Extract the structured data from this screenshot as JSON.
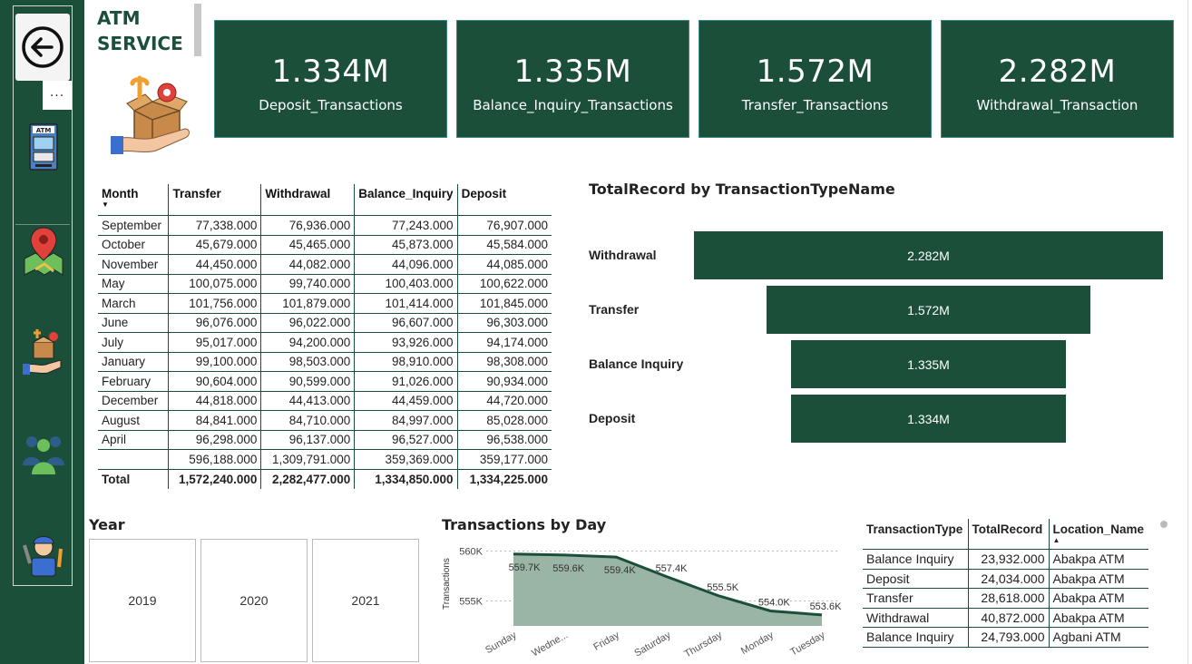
{
  "app": {
    "title_line1": "ATM",
    "title_line2": "SERVICE"
  },
  "sidebar": {
    "more_label": "...",
    "icons": [
      "back-arrow-icon",
      "atm-machine-icon",
      "map-pin-icon",
      "service-box-icon",
      "users-group-icon",
      "technician-icon"
    ]
  },
  "kpis": [
    {
      "value": "1.334M",
      "label": "Deposit_Transactions"
    },
    {
      "value": "1.335M",
      "label": "Balance_Inquiry_Transactions"
    },
    {
      "value": "1.572M",
      "label": "Transfer_Transactions"
    },
    {
      "value": "2.282M",
      "label": "Withdrawal_Transaction"
    }
  ],
  "matrix": {
    "headers": [
      "Month",
      "Transfer",
      "Withdrawal",
      "Balance_Inquiry",
      "Deposit"
    ],
    "rows": [
      [
        "September",
        "77,338.000",
        "76,936.000",
        "77,243.000",
        "76,907.000"
      ],
      [
        "October",
        "45,679.000",
        "45,465.000",
        "45,873.000",
        "45,584.000"
      ],
      [
        "November",
        "44,450.000",
        "44,082.000",
        "44,096.000",
        "44,085.000"
      ],
      [
        "May",
        "100,075.000",
        "99,740.000",
        "100,403.000",
        "100,622.000"
      ],
      [
        "March",
        "101,756.000",
        "101,879.000",
        "101,414.000",
        "101,845.000"
      ],
      [
        "June",
        "96,076.000",
        "96,022.000",
        "96,607.000",
        "96,303.000"
      ],
      [
        "July",
        "95,017.000",
        "94,200.000",
        "93,926.000",
        "94,174.000"
      ],
      [
        "January",
        "99,100.000",
        "98,503.000",
        "98,910.000",
        "98,308.000"
      ],
      [
        "February",
        "90,604.000",
        "90,599.000",
        "91,026.000",
        "90,934.000"
      ],
      [
        "December",
        "44,818.000",
        "44,413.000",
        "44,459.000",
        "44,720.000"
      ],
      [
        "August",
        "84,841.000",
        "84,710.000",
        "84,997.000",
        "85,028.000"
      ],
      [
        "April",
        "96,298.000",
        "96,137.000",
        "96,527.000",
        "96,538.000"
      ],
      [
        "",
        "596,188.000",
        "1,309,791.000",
        "359,369.000",
        "359,177.000"
      ]
    ],
    "total": [
      "Total",
      "1,572,240.000",
      "2,282,477.000",
      "1,334,850.000",
      "1,334,225.000"
    ]
  },
  "funnel": {
    "title": "TotalRecord by TransactionTypeName",
    "labels": [
      "Withdrawal",
      "Transfer",
      "Balance Inquiry",
      "Deposit"
    ],
    "value_labels": [
      "2.282M",
      "1.572M",
      "1.335M",
      "1.334M"
    ]
  },
  "year_slicer": {
    "title": "Year",
    "options": [
      "2019",
      "2020",
      "2021"
    ]
  },
  "chart_data": {
    "type": "area",
    "title": "Transactions by Day",
    "ylabel": "Transactions",
    "xlabel": "",
    "categories": [
      "Sunday",
      "Wedne...",
      "Friday",
      "Saturday",
      "Thursday",
      "Monday",
      "Tuesday"
    ],
    "values": [
      559.7,
      559.6,
      559.4,
      557.4,
      555.5,
      554.0,
      553.6
    ],
    "data_labels": [
      "559.7K",
      "559.6K",
      "559.4K",
      "557.4K",
      "555.5K",
      "554.0K",
      "553.6K"
    ],
    "y_ticks": [
      555,
      560
    ],
    "y_tick_labels": [
      "555K",
      "560K"
    ],
    "ylim": [
      552.5,
      560.5
    ],
    "colors": {
      "line": "#1b4f3a",
      "fill": "#9ab5a6"
    }
  },
  "detail_table": {
    "headers": [
      "TransactionType",
      "TotalRecord",
      "Location_Name"
    ],
    "rows": [
      [
        "Balance Inquiry",
        "23,932.000",
        "Abakpa ATM"
      ],
      [
        "Deposit",
        "24,034.000",
        "Abakpa ATM"
      ],
      [
        "Transfer",
        "28,618.000",
        "Abakpa ATM"
      ],
      [
        "Withdrawal",
        "40,872.000",
        "Abakpa ATM"
      ],
      [
        "Balance Inquiry",
        "24,793.000",
        "Agbani ATM"
      ]
    ]
  },
  "colors": {
    "brand": "#1b4f3a",
    "kpi_border": "#3a8a8a"
  }
}
